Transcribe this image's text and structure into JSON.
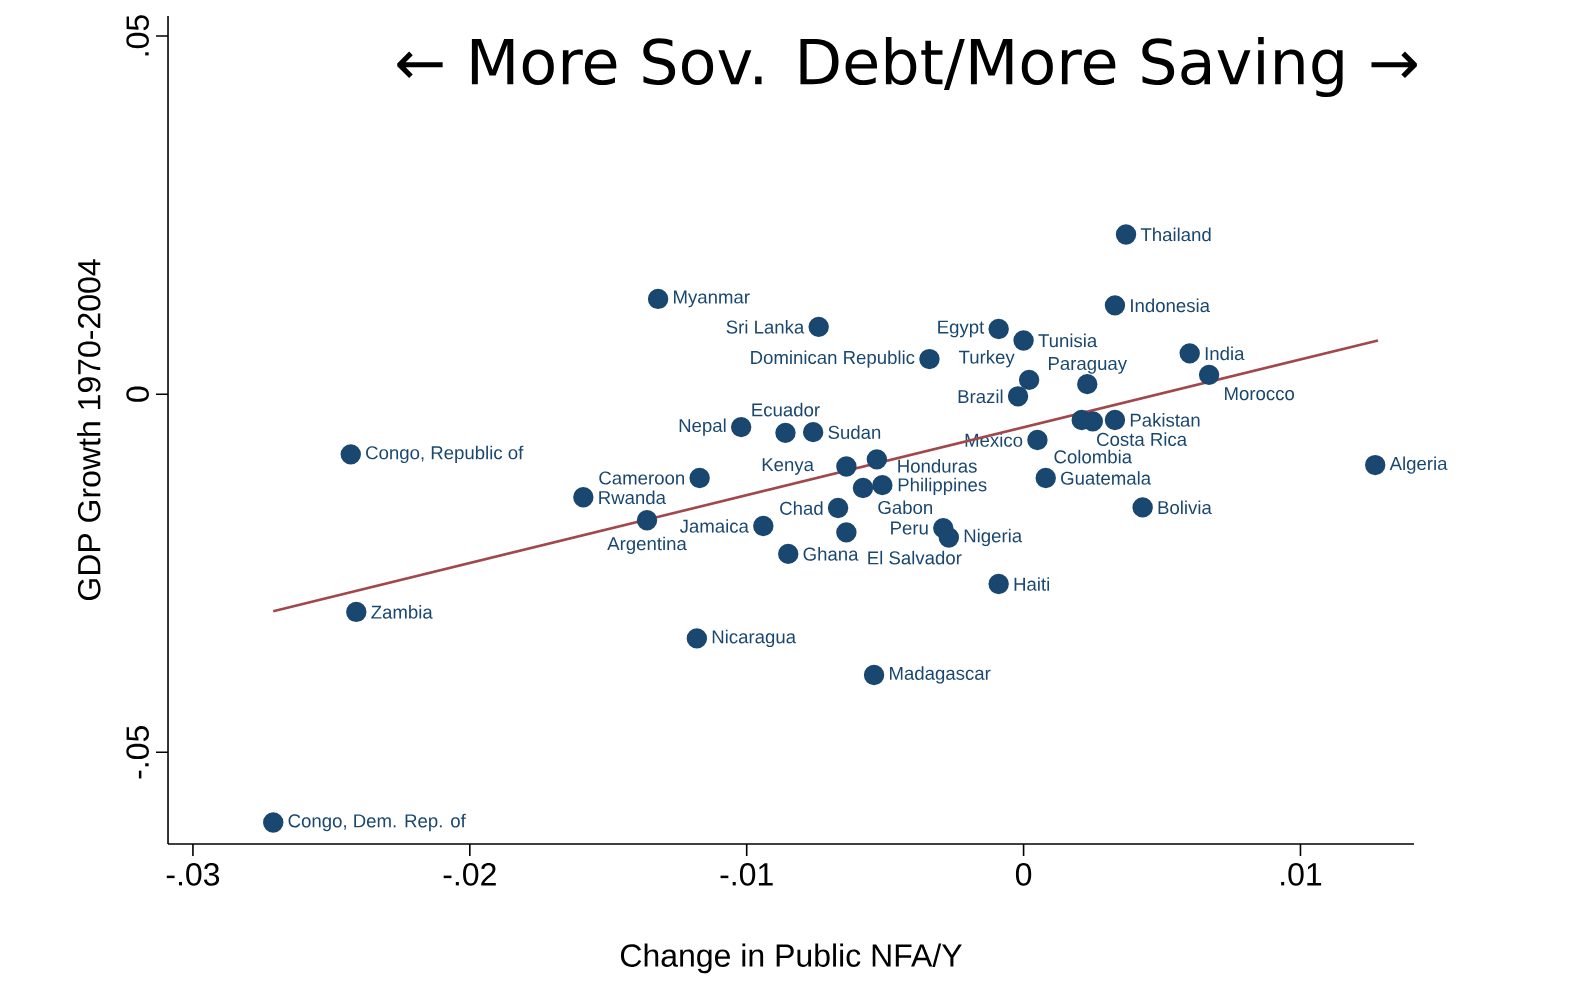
{
  "chart_data": {
    "type": "scatter",
    "title": "← More Sov. Debt/More Saving →",
    "xlabel": "Change in Public NFA/Y",
    "ylabel": "GDP Growth 1970-2004",
    "xlim": [
      -0.0309,
      0.0141
    ],
    "ylim": [
      -0.0628,
      0.0528
    ],
    "xticks": [
      {
        "value": -0.03,
        "label": "-.03"
      },
      {
        "value": -0.02,
        "label": "-.02"
      },
      {
        "value": -0.01,
        "label": "-.01"
      },
      {
        "value": 0,
        "label": "0"
      },
      {
        "value": 0.01,
        "label": ".01"
      }
    ],
    "yticks": [
      {
        "value": -0.05,
        "label": "-.05"
      },
      {
        "value": 0,
        "label": "0"
      },
      {
        "value": 0.05,
        "label": ".05"
      }
    ],
    "marker": "circle",
    "series": [
      {
        "color": "#1a476f",
        "x": [
          0.0037,
          0.0033,
          -0.0132,
          -0.0074,
          -0.0009,
          0.0,
          -0.0034,
          0.006,
          0.0067,
          0.0002,
          0.0023,
          -0.0002,
          0.0021,
          0.0025,
          0.0033,
          -0.0102,
          -0.0086,
          -0.0076,
          -0.0243,
          -0.0117,
          -0.0053,
          -0.0064,
          -0.0051,
          -0.0058,
          -0.0067,
          0.0005,
          0.0008,
          0.0043,
          0.0127,
          -0.0159,
          -0.0136,
          -0.0094,
          -0.0064,
          -0.0029,
          -0.0027,
          -0.0085,
          -0.0009,
          -0.0241,
          -0.0118,
          -0.0054,
          -0.0271
        ],
        "values": [
          0.0223,
          0.0124,
          0.0133,
          0.0094,
          0.0091,
          0.0075,
          0.0049,
          0.0057,
          0.0027,
          0.002,
          0.0014,
          -0.0003,
          -0.0036,
          -0.0038,
          -0.0036,
          -0.0046,
          -0.0054,
          -0.0053,
          -0.0084,
          -0.0117,
          -0.0091,
          -0.0101,
          -0.0127,
          -0.0131,
          -0.0159,
          -0.0064,
          -0.0117,
          -0.0158,
          -0.0099,
          -0.0144,
          -0.0176,
          -0.0184,
          -0.0193,
          -0.0187,
          -0.02,
          -0.0223,
          -0.0265,
          -0.0304,
          -0.0341,
          -0.0392,
          -0.0598
        ],
        "value_labels": [
          "Thailand",
          "Indonesia",
          "Myanmar",
          "Sri Lanka",
          "Egypt",
          "Tunisia",
          "Dominican Republic",
          "India",
          "Morocco",
          "Turkey",
          "Paraguay",
          "Brazil",
          "Costa Rica",
          "Colombia",
          "Pakistan",
          "Nepal",
          "Ecuador",
          "Sudan",
          "Congo, Republic of",
          "Cameroon",
          "Philippines",
          "Kenya",
          "Honduras",
          "Gabon",
          "Chad",
          "Mexico",
          "Guatemala",
          "Bolivia",
          "Algeria",
          "Rwanda",
          "Argentina",
          "Jamaica",
          "El Salvador",
          "Peru",
          "Nigeria",
          "Ghana",
          "Haiti",
          "Zambia",
          "Nicaragua",
          "Madagascar",
          "Congo, Dem. Rep. of"
        ]
      },
      {
        "type": "line",
        "marker": "none",
        "color": "#a0484c",
        "x": [
          -0.0271,
          0.0128
        ],
        "values": [
          -0.0303,
          0.0075
        ]
      }
    ]
  }
}
